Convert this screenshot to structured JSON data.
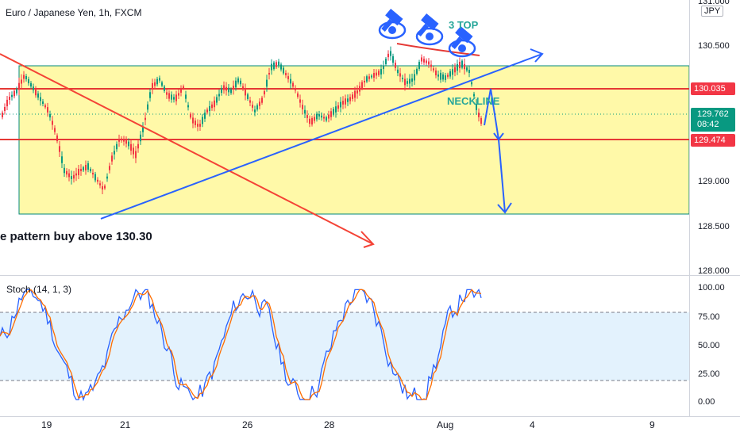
{
  "header": {
    "symbol_title": "Euro / Japanese Yen, 1h, FXCM",
    "currency": "JPY"
  },
  "annotations": {
    "pattern": "3 TOP",
    "neckline": "NECKLINE",
    "idea_text": "e pattern buy above 130.30"
  },
  "price_axis": {
    "labels": [
      "131.000",
      "130.500",
      "129.000",
      "128.500",
      "128.000"
    ]
  },
  "price_tags": {
    "resistance": {
      "value": "130.035",
      "color": "#f23645"
    },
    "current": {
      "value": "129.762",
      "timer": "08:42",
      "color": "#089981"
    },
    "support": {
      "value": "129.474",
      "color": "#f23645"
    }
  },
  "indicator": {
    "title": "Stoch (14, 1, 3)",
    "axis_labels": [
      "100.00",
      "75.00",
      "50.00",
      "25.00",
      "0.00"
    ],
    "upper_band": 80,
    "lower_band": 20,
    "k_color": "#2962ff",
    "d_color": "#ff6d00"
  },
  "time_axis": {
    "labels": [
      "19",
      "21",
      "26",
      "28",
      "Aug",
      "4",
      "9"
    ]
  },
  "colors": {
    "range_box": "#fff59d",
    "trendline_blue": "#2962ff",
    "trendline_red": "#f44336",
    "neckline_text": "#26a69a",
    "stoch_band": "#e3f2fd"
  }
}
